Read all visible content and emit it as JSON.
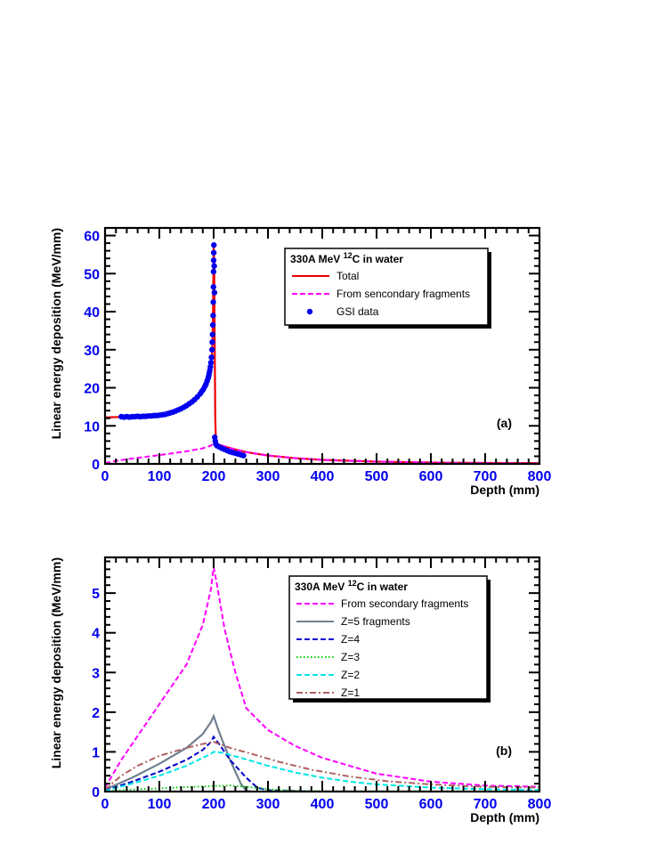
{
  "chart_data": [
    {
      "type": "line",
      "panel_label": "(a)",
      "xlabel": "Depth (mm)",
      "ylabel": "Linear energy deposition (MeV/mm)",
      "xlim": [
        0,
        800
      ],
      "ylim": [
        0,
        62
      ],
      "x_ticks": [
        "0",
        "100",
        "200",
        "300",
        "400",
        "500",
        "600",
        "700",
        "800"
      ],
      "y_ticks": [
        "0",
        "10",
        "20",
        "30",
        "40",
        "50",
        "60"
      ],
      "y_tick_values": [
        0,
        10,
        20,
        30,
        40,
        50,
        60
      ],
      "legend": {
        "title_parts": [
          "330A MeV ",
          "12",
          "C in water"
        ],
        "placement": "top-right",
        "entries": [
          "Total",
          "From sencondary fragments",
          "GSI data"
        ]
      },
      "series": [
        {
          "name": "Total",
          "style": "solid",
          "color": "#ee0000",
          "points": [
            [
              0,
              12.2
            ],
            [
              20,
              12.3
            ],
            [
              50,
              12.4
            ],
            [
              80,
              12.6
            ],
            [
              110,
              13.2
            ],
            [
              130,
              14.0
            ],
            [
              150,
              15.2
            ],
            [
              165,
              16.6
            ],
            [
              175,
              18.0
            ],
            [
              183,
              19.6
            ],
            [
              188,
              21.2
            ],
            [
              192,
              23.0
            ],
            [
              195,
              25.0
            ],
            [
              197,
              28.0
            ],
            [
              198,
              33.0
            ],
            [
              199,
              42.0
            ],
            [
              200,
              57.5
            ],
            [
              201,
              52.0
            ],
            [
              202,
              30.0
            ],
            [
              203,
              12.0
            ],
            [
              204,
              6.5
            ],
            [
              206,
              5.4
            ],
            [
              210,
              5.0
            ],
            [
              220,
              4.6
            ],
            [
              240,
              3.8
            ],
            [
              260,
              3.1
            ],
            [
              300,
              2.2
            ],
            [
              350,
              1.5
            ],
            [
              400,
              1.05
            ],
            [
              500,
              0.6
            ],
            [
              600,
              0.35
            ],
            [
              700,
              0.25
            ],
            [
              800,
              0.2
            ]
          ]
        },
        {
          "name": "From sencondary fragments",
          "style": "dashed",
          "color": "#ff00ff",
          "points": [
            [
              0,
              0.2
            ],
            [
              20,
              0.8
            ],
            [
              50,
              1.4
            ],
            [
              100,
              2.3
            ],
            [
              150,
              3.3
            ],
            [
              180,
              4.1
            ],
            [
              195,
              4.8
            ],
            [
              200,
              5.6
            ],
            [
              205,
              5.4
            ],
            [
              220,
              4.6
            ],
            [
              240,
              3.8
            ],
            [
              260,
              3.1
            ],
            [
              300,
              2.2
            ],
            [
              350,
              1.5
            ],
            [
              400,
              1.05
            ],
            [
              500,
              0.6
            ],
            [
              600,
              0.35
            ],
            [
              700,
              0.25
            ],
            [
              800,
              0.15
            ]
          ]
        },
        {
          "name": "GSI data",
          "style": "markers",
          "color": "#0000ee",
          "points": [
            [
              30,
              12.4
            ],
            [
              35,
              12.3
            ],
            [
              40,
              12.4
            ],
            [
              45,
              12.3
            ],
            [
              50,
              12.4
            ],
            [
              55,
              12.4
            ],
            [
              60,
              12.5
            ],
            [
              65,
              12.4
            ],
            [
              70,
              12.5
            ],
            [
              75,
              12.5
            ],
            [
              80,
              12.6
            ],
            [
              85,
              12.6
            ],
            [
              90,
              12.7
            ],
            [
              95,
              12.7
            ],
            [
              100,
              12.8
            ],
            [
              105,
              12.9
            ],
            [
              110,
              13.0
            ],
            [
              115,
              13.2
            ],
            [
              120,
              13.4
            ],
            [
              125,
              13.6
            ],
            [
              130,
              13.9
            ],
            [
              135,
              14.2
            ],
            [
              140,
              14.5
            ],
            [
              145,
              14.9
            ],
            [
              150,
              15.3
            ],
            [
              155,
              15.8
            ],
            [
              160,
              16.3
            ],
            [
              165,
              16.9
            ],
            [
              170,
              17.6
            ],
            [
              175,
              18.4
            ],
            [
              178,
              19.0
            ],
            [
              181,
              19.6
            ],
            [
              184,
              20.4
            ],
            [
              186,
              21.0
            ],
            [
              188,
              21.8
            ],
            [
              190,
              22.6
            ],
            [
              191,
              23.2
            ],
            [
              192,
              23.9
            ],
            [
              193,
              24.6
            ],
            [
              194,
              25.5
            ],
            [
              195,
              26.6
            ],
            [
              196,
              28.0
            ],
            [
              197,
              30.0
            ],
            [
              197.5,
              32.0
            ],
            [
              198,
              34.0
            ],
            [
              198.5,
              36.5
            ],
            [
              199,
              39.0
            ],
            [
              199.3,
              42.5
            ],
            [
              199.6,
              46.5
            ],
            [
              199.8,
              50.5
            ],
            [
              200,
              53.5
            ],
            [
              200.2,
              55.5
            ],
            [
              200.4,
              57.5
            ],
            [
              201,
              52.0
            ],
            [
              201.5,
              45.0
            ],
            [
              202,
              7.0
            ],
            [
              203,
              6.0
            ],
            [
              204,
              5.2
            ],
            [
              206,
              4.8
            ],
            [
              210,
              4.5
            ],
            [
              215,
              4.1
            ],
            [
              220,
              3.8
            ],
            [
              225,
              3.5
            ],
            [
              230,
              3.2
            ],
            [
              235,
              3.0
            ],
            [
              240,
              2.8
            ],
            [
              245,
              2.6
            ],
            [
              250,
              2.4
            ],
            [
              255,
              2.2
            ]
          ]
        }
      ]
    },
    {
      "type": "line",
      "panel_label": "(b)",
      "xlabel": "Depth (mm)",
      "ylabel": "Linear energy deposition (MeV/mm)",
      "xlim": [
        0,
        800
      ],
      "ylim": [
        0,
        5.9
      ],
      "x_ticks": [
        "0",
        "100",
        "200",
        "300",
        "400",
        "500",
        "600",
        "700",
        "800"
      ],
      "y_ticks": [
        "0",
        "1",
        "2",
        "3",
        "4",
        "5"
      ],
      "y_tick_values": [
        0,
        1,
        2,
        3,
        4,
        5
      ],
      "legend": {
        "title_parts": [
          "330A MeV ",
          "12",
          "C in water"
        ],
        "placement": "top-right",
        "entries": [
          "From secondary fragments",
          "Z=5 fragments",
          "Z=4",
          "Z=3",
          "Z=2",
          "Z=1"
        ]
      },
      "series": [
        {
          "name": "From secondary fragments",
          "style": "dashed",
          "color": "#ff00ff",
          "points": [
            [
              0,
              0.1
            ],
            [
              30,
              0.8
            ],
            [
              60,
              1.4
            ],
            [
              100,
              2.2
            ],
            [
              150,
              3.2
            ],
            [
              180,
              4.2
            ],
            [
              195,
              5.1
            ],
            [
              200,
              5.65
            ],
            [
              205,
              5.3
            ],
            [
              220,
              4.1
            ],
            [
              240,
              3.0
            ],
            [
              260,
              2.1
            ],
            [
              300,
              1.55
            ],
            [
              350,
              1.15
            ],
            [
              400,
              0.85
            ],
            [
              500,
              0.45
            ],
            [
              600,
              0.25
            ],
            [
              700,
              0.15
            ],
            [
              800,
              0.12
            ]
          ]
        },
        {
          "name": "Z=5 fragments",
          "style": "solid",
          "color": "#708090",
          "points": [
            [
              0,
              0.05
            ],
            [
              50,
              0.35
            ],
            [
              100,
              0.7
            ],
            [
              150,
              1.1
            ],
            [
              180,
              1.45
            ],
            [
              195,
              1.75
            ],
            [
              200,
              1.9
            ],
            [
              210,
              1.5
            ],
            [
              230,
              0.8
            ],
            [
              250,
              0.2
            ],
            [
              260,
              0.02
            ],
            [
              270,
              0
            ]
          ]
        },
        {
          "name": "Z=4",
          "style": "dashed",
          "color": "#0000cc",
          "points": [
            [
              0,
              0.03
            ],
            [
              50,
              0.25
            ],
            [
              100,
              0.5
            ],
            [
              150,
              0.8
            ],
            [
              180,
              1.05
            ],
            [
              195,
              1.25
            ],
            [
              200,
              1.38
            ],
            [
              210,
              1.2
            ],
            [
              230,
              0.8
            ],
            [
              260,
              0.35
            ],
            [
              280,
              0.1
            ],
            [
              300,
              0.03
            ],
            [
              350,
              0.01
            ],
            [
              400,
              0
            ]
          ]
        },
        {
          "name": "Z=3",
          "style": "dotted",
          "color": "#00cc00",
          "points": [
            [
              0,
              0.01
            ],
            [
              50,
              0.05
            ],
            [
              100,
              0.08
            ],
            [
              150,
              0.11
            ],
            [
              200,
              0.14
            ],
            [
              230,
              0.15
            ],
            [
              260,
              0.12
            ],
            [
              300,
              0.06
            ],
            [
              350,
              0.02
            ],
            [
              400,
              0.01
            ],
            [
              800,
              0
            ]
          ]
        },
        {
          "name": "Z=2",
          "style": "dashed",
          "color": "#00e6e6",
          "points": [
            [
              0,
              0.02
            ],
            [
              50,
              0.2
            ],
            [
              100,
              0.4
            ],
            [
              150,
              0.65
            ],
            [
              180,
              0.85
            ],
            [
              195,
              0.95
            ],
            [
              200,
              1.0
            ],
            [
              215,
              0.98
            ],
            [
              250,
              0.85
            ],
            [
              300,
              0.65
            ],
            [
              350,
              0.48
            ],
            [
              400,
              0.35
            ],
            [
              450,
              0.25
            ],
            [
              500,
              0.18
            ],
            [
              600,
              0.1
            ],
            [
              700,
              0.06
            ],
            [
              800,
              0.04
            ]
          ]
        },
        {
          "name": "Z=1",
          "style": "dashdot",
          "color": "#b06060",
          "points": [
            [
              0,
              0.05
            ],
            [
              30,
              0.4
            ],
            [
              60,
              0.65
            ],
            [
              100,
              0.9
            ],
            [
              150,
              1.1
            ],
            [
              180,
              1.2
            ],
            [
              200,
              1.25
            ],
            [
              230,
              1.1
            ],
            [
              270,
              0.95
            ],
            [
              320,
              0.75
            ],
            [
              380,
              0.55
            ],
            [
              450,
              0.38
            ],
            [
              520,
              0.26
            ],
            [
              600,
              0.18
            ],
            [
              700,
              0.12
            ],
            [
              800,
              0.1
            ]
          ]
        }
      ]
    }
  ]
}
